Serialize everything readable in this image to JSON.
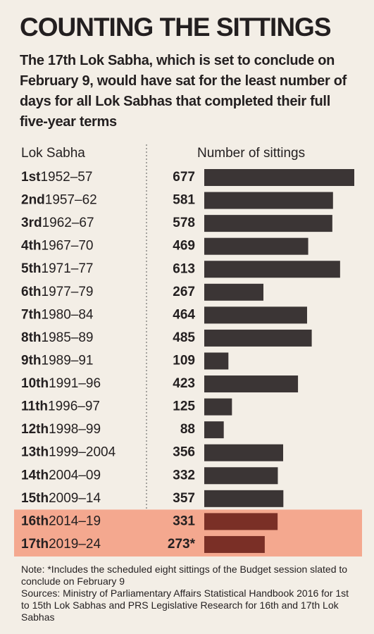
{
  "chart_data": {
    "type": "bar",
    "title": "COUNTING THE SITTINGS",
    "subtitle": "The 17th Lok Sabha, which is set to conclude on February 9, would have sat for the least number of days for all Lok Sabhas that completed their full five-year terms",
    "category_header": "Lok Sabha",
    "value_header": "Number of sittings",
    "categories": [
      "1st",
      "2nd",
      "3rd",
      "4th",
      "5th",
      "6th",
      "7th",
      "8th",
      "9th",
      "10th",
      "11th",
      "12th",
      "13th",
      "14th",
      "15th",
      "16th",
      "17th"
    ],
    "periods": [
      "1952–57",
      "1957–62",
      "1962–67",
      "1967–70",
      "1971–77",
      "1977–79",
      "1980–84",
      "1985–89",
      "1989–91",
      "1991–96",
      "1996–97",
      "1998–99",
      "1999–2004",
      "2004–09",
      "2009–14",
      "2014–19",
      "2019–24"
    ],
    "values": [
      677,
      581,
      578,
      469,
      613,
      267,
      464,
      485,
      109,
      423,
      125,
      88,
      356,
      332,
      357,
      331,
      273
    ],
    "value_labels": [
      "677",
      "581",
      "578",
      "469",
      "613",
      "267",
      "464",
      "485",
      "109",
      "423",
      "125",
      "88",
      "356",
      "332",
      "357",
      "331",
      "273*"
    ],
    "color": "#3b3535",
    "highlight": [
      15,
      16
    ],
    "highlight_color": "#7a2f26",
    "highlight_background": "#f4a88f",
    "note": "Note: *Includes the scheduled eight sittings of the Budget session slated to conclude on February 9",
    "sources": "Sources: Ministry of Parliamentary Affairs Statistical Handbook 2016 for 1st to 15th Lok Sabhas and PRS Legislative Research for 16th and 17th Lok Sabhas"
  }
}
